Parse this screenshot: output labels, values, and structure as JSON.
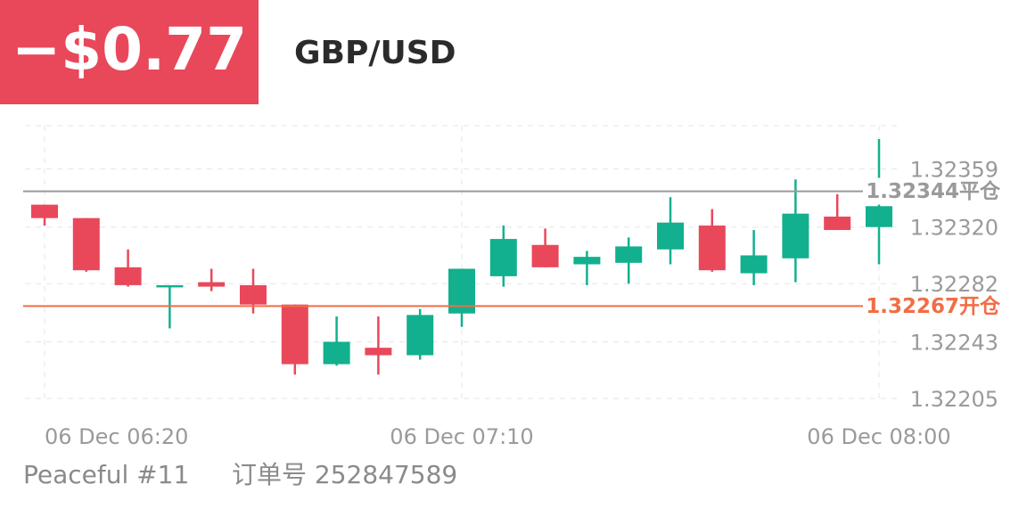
{
  "header": {
    "pnl": "−$0.77"
  },
  "chart_data": {
    "type": "candlestick",
    "title": "GBP/USD",
    "categories": [
      "06 Dec 06:20",
      null,
      null,
      null,
      null,
      null,
      null,
      null,
      null,
      null,
      "06 Dec 07:10",
      null,
      null,
      null,
      null,
      null,
      null,
      null,
      null,
      null,
      "06 Dec 08:00"
    ],
    "open": [
      1.32335,
      1.32326,
      1.32293,
      1.3228,
      1.32283,
      1.32281,
      1.32268,
      1.32228,
      1.32239,
      1.32234,
      1.32262,
      1.32287,
      1.32308,
      1.32295,
      1.32296,
      1.32305,
      1.32321,
      1.32289,
      1.32299,
      1.32327,
      1.3232
    ],
    "high": [
      1.32335,
      1.32326,
      1.32305,
      1.32281,
      1.32292,
      1.32292,
      1.32268,
      1.3226,
      1.3226,
      1.32265,
      1.32292,
      1.32321,
      1.32319,
      1.32304,
      1.32313,
      1.3234,
      1.32332,
      1.32318,
      1.32352,
      1.32342,
      1.32379
    ],
    "low": [
      1.32321,
      1.3229,
      1.3228,
      1.32252,
      1.32277,
      1.32262,
      1.32221,
      1.32227,
      1.32221,
      1.32231,
      1.32253,
      1.3228,
      1.32293,
      1.32281,
      1.32282,
      1.32295,
      1.3229,
      1.32281,
      1.32283,
      1.32318,
      1.32295
    ],
    "close": [
      1.32326,
      1.32291,
      1.32281,
      1.32281,
      1.3228,
      1.32268,
      1.32228,
      1.32243,
      1.32234,
      1.32261,
      1.32292,
      1.32312,
      1.32293,
      1.323,
      1.32307,
      1.32323,
      1.32291,
      1.32301,
      1.32329,
      1.32318,
      1.32334
    ],
    "up_color": "#12b08e",
    "down_color": "#e9485a",
    "ylim": [
      1.32205,
      1.32388
    ],
    "yticks": [
      1.32205,
      1.32243,
      1.32282,
      {
        "value": 1.3232,
        "label": "1.32320"
      },
      1.32359
    ],
    "grid": true,
    "lines": [
      {
        "value": 1.32344,
        "label": "1.32344平仓",
        "color": "#9a9a9a"
      },
      {
        "value": 1.32267,
        "label": "1.32267开仓",
        "color": "#f26d45"
      }
    ]
  },
  "footer": {
    "account": "Peaceful #11",
    "order": "订单号 252847589"
  }
}
